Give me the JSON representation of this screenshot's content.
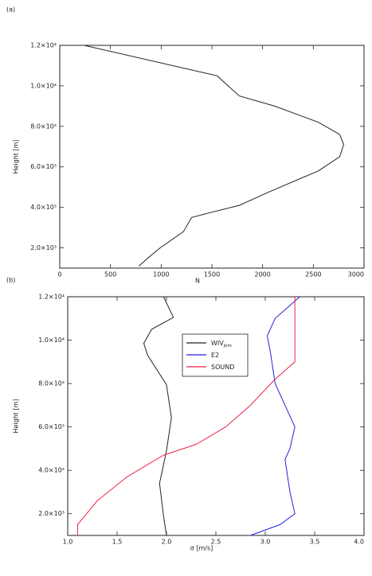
{
  "chart_data": [
    {
      "type": "line",
      "panel_label": "(a)",
      "ylabel": "Height [m]",
      "xlabel": "N",
      "xlim": [
        0,
        3000
      ],
      "xticks": [
        0,
        500,
        1000,
        1500,
        2000,
        2500,
        3000
      ],
      "ylim": [
        1000,
        12000
      ],
      "yticks": [
        {
          "value": 2000,
          "label": "2.0×10³"
        },
        {
          "value": 4000,
          "label": "4.0×10³"
        },
        {
          "value": 6000,
          "label": "6.0×10³"
        },
        {
          "value": 8000,
          "label": "8.0×10³"
        },
        {
          "value": 10000,
          "label": "1.0×10⁴"
        },
        {
          "value": 12000,
          "label": "1.2×10⁴"
        }
      ],
      "series": [
        {
          "color": "#222222",
          "values": [
            240,
            1550,
            1770,
            2120,
            2550,
            2760,
            2800,
            2760,
            2550,
            2080,
            1770,
            1450,
            1300,
            1220,
            990,
            870,
            780
          ],
          "heights": [
            12000,
            10500,
            9500,
            9000,
            8200,
            7600,
            7100,
            6500,
            5800,
            4800,
            4100,
            3700,
            3500,
            2800,
            2000,
            1500,
            1100
          ]
        }
      ]
    },
    {
      "type": "line",
      "panel_label": "(b)",
      "ylabel": "Height [m]",
      "xlabel": "σ [m/s]",
      "xlim": [
        1,
        4
      ],
      "xticks": [
        {
          "value": 1,
          "label": "1.0"
        },
        1.5,
        {
          "value": 2,
          "label": "2.0"
        },
        2.5,
        {
          "value": 3,
          "label": "3.0"
        },
        3.5,
        {
          "value": 4,
          "label": "4.0"
        }
      ],
      "ylim": [
        1000,
        12000
      ],
      "yticks": [
        {
          "value": 2000,
          "label": "2.0×10³"
        },
        {
          "value": 4000,
          "label": "4.0×10³"
        },
        {
          "value": 6000,
          "label": "6.0×10³"
        },
        {
          "value": 8000,
          "label": "8.0×10³"
        },
        {
          "value": 10000,
          "label": "1.0×10⁴"
        },
        {
          "value": 12000,
          "label": "1.2×10⁴"
        }
      ],
      "series": [
        {
          "name": "WIV",
          "name_subscript": "jkm",
          "color": "#222222",
          "values": [
            1.97,
            2.07,
            1.85,
            1.77,
            1.81,
            2.0,
            2.05,
            2.0,
            1.93,
            1.97,
            2.0
          ],
          "heights": [
            12000,
            11050,
            10500,
            9850,
            9300,
            7950,
            6430,
            4900,
            3400,
            1900,
            1000
          ]
        },
        {
          "name": "E2",
          "color": "#2222dd",
          "values": [
            3.35,
            3.1,
            3.02,
            3.05,
            3.1,
            3.2,
            3.3,
            3.25,
            3.2,
            3.25,
            3.3,
            3.15,
            2.85
          ],
          "heights": [
            12000,
            11000,
            10200,
            9500,
            8000,
            7000,
            6000,
            5000,
            4500,
            3000,
            2000,
            1500,
            1000
          ]
        },
        {
          "name": "SOUND",
          "color": "#ee2244",
          "values": [
            3.3,
            3.3,
            3.1,
            2.85,
            2.6,
            2.3,
            1.97,
            1.6,
            1.3,
            1.1,
            1.1
          ],
          "heights": [
            12000,
            9000,
            8200,
            7000,
            6000,
            5200,
            4700,
            3700,
            2600,
            1500,
            1000
          ]
        }
      ]
    }
  ]
}
